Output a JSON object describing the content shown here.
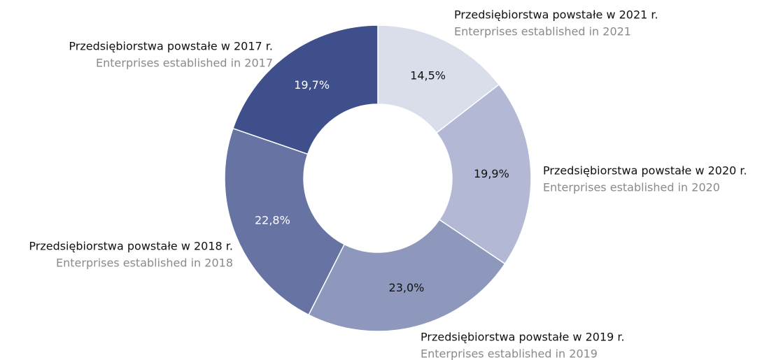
{
  "chart_data": {
    "type": "donut",
    "categories": [
      "Przedsiębiorstwa powstałe w 2021 r.",
      "Przedsiębiorstwa powstałe w 2020 r.",
      "Przedsiębiorstwa powstałe w 2019 r.",
      "Przedsiębiorstwa powstałe w 2018 r.",
      "Przedsiębiorstwa powstałe w 2017 r."
    ],
    "categories_en": [
      "Enterprises established in 2021",
      "Enterprises established in 2020",
      "Enterprises established in 2019",
      "Enterprises established in 2018",
      "Enterprises established in 2017"
    ],
    "values": [
      14.5,
      19.9,
      23.0,
      22.8,
      19.7
    ],
    "value_labels": [
      "14,5%",
      "19,9%",
      "23,0%",
      "22,8%",
      "19,7%"
    ],
    "colors": [
      "#dadeeb",
      "#b3b9d4",
      "#8e98bd",
      "#6673a3",
      "#3f4f8b"
    ]
  }
}
